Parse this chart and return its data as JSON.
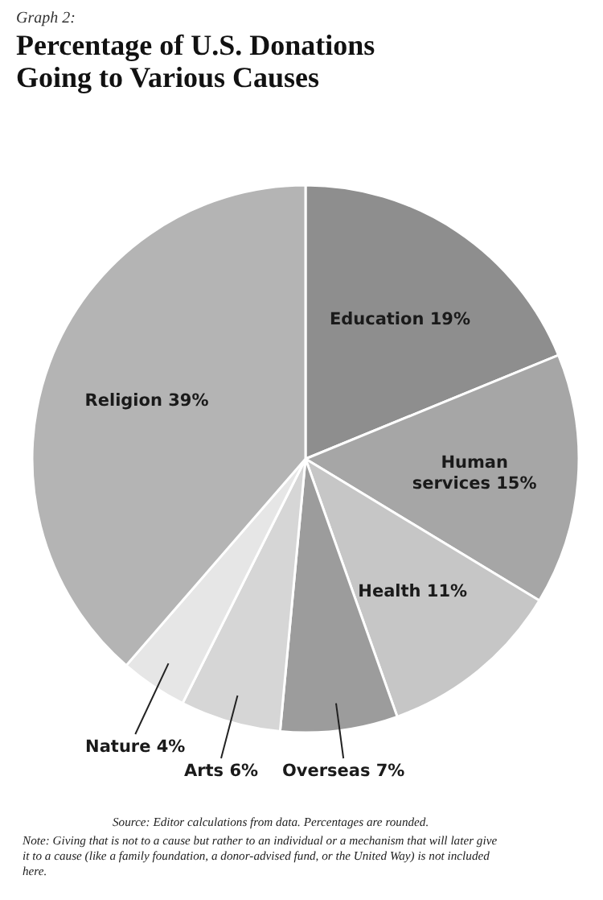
{
  "chart_data": {
    "type": "pie",
    "subtitle": "Graph 2:",
    "title": "Percentage of U.S. Donations Going to Various Causes",
    "categories": [
      "Education",
      "Human services",
      "Health",
      "Overseas",
      "Arts",
      "Nature",
      "Religion"
    ],
    "values": [
      19,
      15,
      11,
      7,
      6,
      4,
      39
    ],
    "value_labels": [
      "19%",
      "15%",
      "11%",
      "7%",
      "6%",
      "4%",
      "39%"
    ],
    "colors": [
      "#8e8e8e",
      "#a6a6a6",
      "#c6c6c6",
      "#9c9c9c",
      "#d6d6d6",
      "#e6e6e6",
      "#b4b4b4"
    ],
    "annotations": [
      "Source:  Editor calculations from data. Percentages are rounded.",
      "Note:  Giving that is not to a cause but rather to an individual or a mechanism that will later give it to a cause (like a family foundation, a donor-advised fund, or the United Way) is not included here."
    ]
  }
}
